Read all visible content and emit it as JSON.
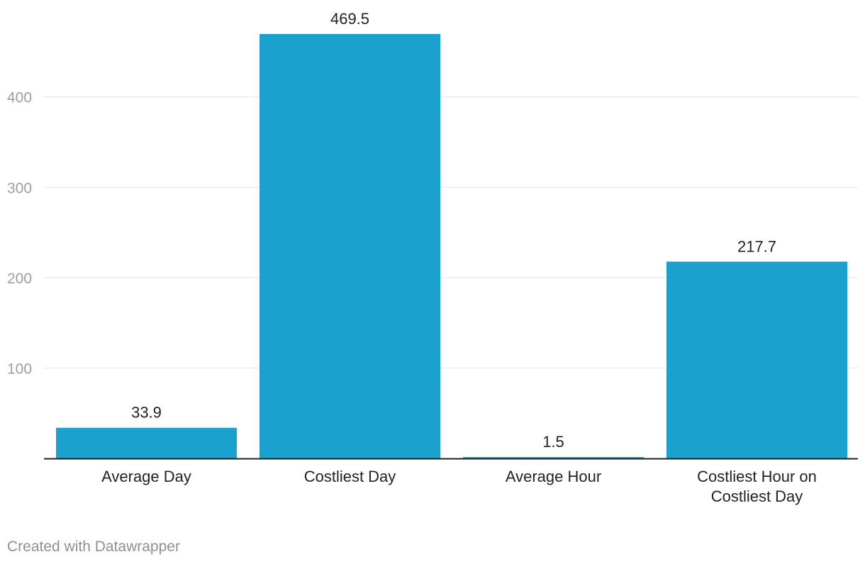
{
  "chart_data": {
    "type": "bar",
    "title": "",
    "xlabel": "",
    "ylabel": "",
    "categories": [
      "Average Day",
      "Costliest Day",
      "Average Hour",
      "Costliest Hour on Costliest Day"
    ],
    "category_lines": [
      [
        "Average Day"
      ],
      [
        "Costliest Day"
      ],
      [
        "Average Hour"
      ],
      [
        "Costliest Hour on",
        "Costliest Day"
      ]
    ],
    "values": [
      33.9,
      469.5,
      1.5,
      217.7
    ],
    "value_labels": [
      "33.9",
      "469.5",
      "1.5",
      "217.7"
    ],
    "ylim": [
      0,
      469.5
    ],
    "yticks": [
      100,
      200,
      300,
      400
    ],
    "ytick_labels": [
      "100",
      "200",
      "300",
      "400"
    ],
    "grid": true,
    "legend": "none"
  },
  "colors": {
    "bar": "#1aa1cd",
    "grid": "#e3e3e3",
    "axis": "#222222",
    "tick_label": "#9e9e9e",
    "value_label": "#222222",
    "category_label": "#222222"
  },
  "footer": {
    "credit": "Created with Datawrapper"
  }
}
